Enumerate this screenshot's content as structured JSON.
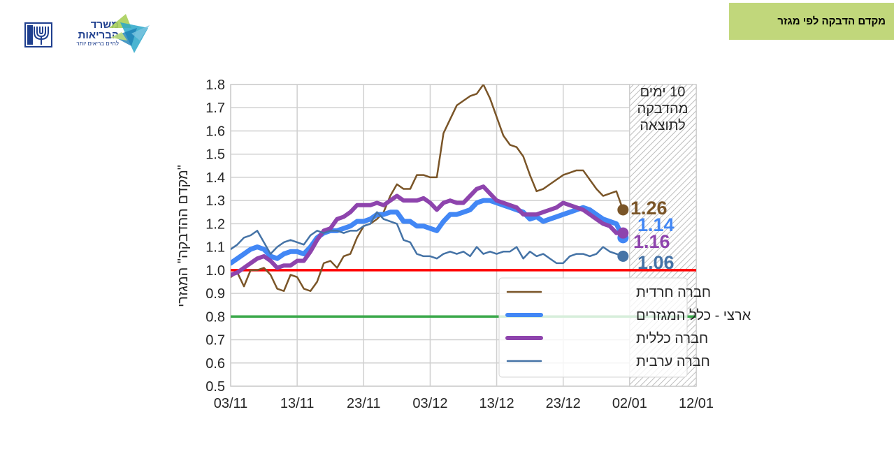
{
  "header": {
    "title": "מקדם הדבקה לפי מגזר"
  },
  "logo": {
    "ministry_line1": "משרד",
    "ministry_line2": "הבריאות",
    "slogan": "לחיים בריאים יותר",
    "emblem_icon": "menorah-emblem-icon",
    "star_icon": "ministry-star-icon"
  },
  "chart_data": {
    "type": "line",
    "title": "מקדם הדבקה לפי מגזר",
    "xlabel": "",
    "ylabel": "\"מקדם ההדבקה\" המגזרי",
    "ylim": [
      0.5,
      1.8
    ],
    "yticks": [
      "1.8",
      "1.7",
      "1.6",
      "1.5",
      "1.4",
      "1.3",
      "1.2",
      "1.1",
      "1.0",
      "0.9",
      "0.8",
      "0.7",
      "0.6",
      "0.5"
    ],
    "xtick_labels": [
      "03/11",
      "13/11",
      "23/11",
      "03/12",
      "13/12",
      "23/12",
      "02/01",
      "12/01"
    ],
    "x_range_days": [
      0,
      70
    ],
    "grid": true,
    "legend_position": "lower right",
    "reference_lines": [
      {
        "value": 1.0,
        "color": "#ff0000"
      },
      {
        "value": 0.8,
        "color": "#3aa84a"
      }
    ],
    "shaded_region": {
      "from_day": 60,
      "to_day": 70,
      "label": "10 ימים מהדבקה לתוצאה"
    },
    "x_days": [
      0,
      1,
      2,
      3,
      4,
      5,
      6,
      7,
      8,
      9,
      10,
      11,
      12,
      13,
      14,
      15,
      16,
      17,
      18,
      19,
      20,
      21,
      22,
      23,
      24,
      25,
      26,
      27,
      28,
      29,
      30,
      31,
      32,
      33,
      34,
      35,
      36,
      37,
      38,
      39,
      40,
      41,
      42,
      43,
      44,
      45,
      46,
      47,
      48,
      49,
      50,
      51,
      52,
      53,
      54,
      55,
      56,
      57,
      58,
      59
    ],
    "series": [
      {
        "name": "חברה חרדית",
        "color": "#7a5528",
        "width": 2.5,
        "end_label": "1.26",
        "values": [
          0.97,
          0.99,
          0.93,
          1.0,
          1.0,
          1.01,
          0.98,
          0.92,
          0.91,
          0.98,
          0.97,
          0.92,
          0.91,
          0.95,
          1.03,
          1.04,
          1.01,
          1.06,
          1.07,
          1.14,
          1.19,
          1.2,
          1.22,
          1.25,
          1.32,
          1.37,
          1.35,
          1.35,
          1.41,
          1.41,
          1.4,
          1.4,
          1.59,
          1.65,
          1.71,
          1.73,
          1.75,
          1.76,
          1.8,
          1.74,
          1.66,
          1.58,
          1.54,
          1.53,
          1.49,
          1.41,
          1.34,
          1.35,
          1.37,
          1.39,
          1.41,
          1.42,
          1.43,
          1.43,
          1.39,
          1.35,
          1.32,
          1.33,
          1.34,
          1.26
        ]
      },
      {
        "name": "ארצי - כלל המגזרים",
        "color": "#4287f5",
        "width": 7,
        "end_label": "1.14",
        "values": [
          1.03,
          1.05,
          1.07,
          1.09,
          1.1,
          1.09,
          1.06,
          1.05,
          1.07,
          1.08,
          1.08,
          1.07,
          1.1,
          1.14,
          1.16,
          1.17,
          1.17,
          1.18,
          1.19,
          1.21,
          1.21,
          1.22,
          1.24,
          1.24,
          1.25,
          1.25,
          1.21,
          1.21,
          1.19,
          1.19,
          1.18,
          1.17,
          1.21,
          1.24,
          1.24,
          1.25,
          1.26,
          1.29,
          1.3,
          1.3,
          1.29,
          1.28,
          1.27,
          1.26,
          1.25,
          1.22,
          1.23,
          1.21,
          1.22,
          1.23,
          1.24,
          1.25,
          1.26,
          1.27,
          1.26,
          1.24,
          1.22,
          1.21,
          1.2,
          1.14
        ]
      },
      {
        "name": "חברה כללית",
        "color": "#8e44ad",
        "width": 6,
        "end_label": "1.16",
        "values": [
          0.98,
          0.99,
          1.01,
          1.03,
          1.05,
          1.06,
          1.04,
          1.01,
          1.02,
          1.02,
          1.04,
          1.04,
          1.08,
          1.13,
          1.17,
          1.18,
          1.22,
          1.23,
          1.25,
          1.28,
          1.28,
          1.28,
          1.29,
          1.28,
          1.3,
          1.32,
          1.3,
          1.3,
          1.3,
          1.31,
          1.29,
          1.26,
          1.29,
          1.3,
          1.29,
          1.29,
          1.32,
          1.35,
          1.36,
          1.33,
          1.3,
          1.29,
          1.28,
          1.27,
          1.24,
          1.24,
          1.24,
          1.25,
          1.26,
          1.27,
          1.29,
          1.28,
          1.27,
          1.26,
          1.24,
          1.22,
          1.2,
          1.19,
          1.16,
          1.16
        ]
      },
      {
        "name": "חברה ערבית",
        "color": "#4573a6",
        "width": 2.5,
        "end_label": "1.06",
        "values": [
          1.09,
          1.11,
          1.14,
          1.15,
          1.17,
          1.12,
          1.07,
          1.1,
          1.12,
          1.13,
          1.12,
          1.11,
          1.15,
          1.17,
          1.16,
          1.17,
          1.17,
          1.16,
          1.17,
          1.17,
          1.19,
          1.2,
          1.25,
          1.22,
          1.21,
          1.2,
          1.13,
          1.12,
          1.07,
          1.06,
          1.06,
          1.05,
          1.07,
          1.08,
          1.07,
          1.08,
          1.06,
          1.1,
          1.07,
          1.08,
          1.07,
          1.08,
          1.08,
          1.1,
          1.05,
          1.08,
          1.06,
          1.07,
          1.05,
          1.03,
          1.03,
          1.06,
          1.07,
          1.07,
          1.06,
          1.07,
          1.1,
          1.08,
          1.07,
          1.06
        ]
      }
    ],
    "end_labels_text": [
      "1.26",
      "1.14",
      "1.16",
      "1.06"
    ]
  },
  "annotation": {
    "line1": "10 ימים",
    "line2": "מהדבקה",
    "line3": "לתוצאה"
  },
  "legend": {
    "items": [
      {
        "label": "חברה חרדית",
        "color": "#7a5528"
      },
      {
        "label": "ארצי - כלל המגזרים",
        "color": "#4287f5"
      },
      {
        "label": "חברה כללית",
        "color": "#8e44ad"
      },
      {
        "label": "חברה ערבית",
        "color": "#4573a6"
      }
    ]
  }
}
